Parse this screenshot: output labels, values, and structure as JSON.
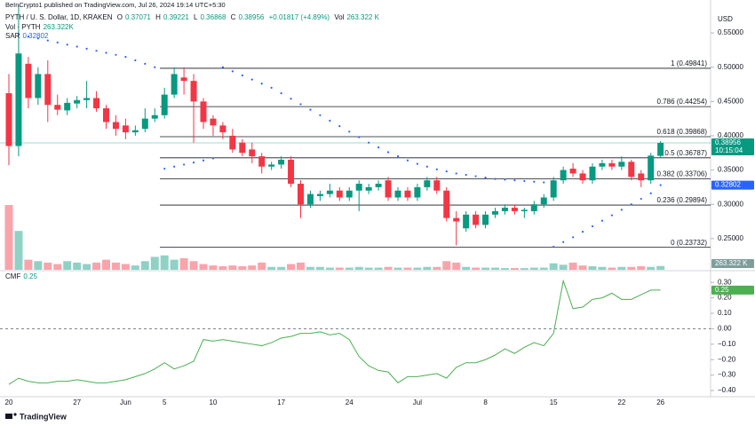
{
  "header": {
    "publisher": "BeInCrypto1 published on TradingView.com, Jul 26, 2024 19:14 UTC+5:30",
    "brand": "TradingView"
  },
  "chart_data": [
    {
      "type": "candlestick",
      "title": "PYTH / U. S. Dollar, 1D, KRAKEN",
      "ohlc_labels": [
        "O",
        "H",
        "L",
        "C"
      ],
      "change_label": "+0.01817 (+4.89%)",
      "countdown": "10:15:04",
      "y_unit": "USD",
      "up_color": "#089981",
      "down_color": "#f23645",
      "categories": [
        "20",
        null,
        null,
        null,
        null,
        null,
        null,
        "27",
        null,
        null,
        null,
        null,
        "Jun",
        null,
        null,
        null,
        "5",
        null,
        null,
        null,
        null,
        "10",
        null,
        null,
        null,
        null,
        null,
        null,
        "17",
        null,
        null,
        null,
        null,
        null,
        null,
        "24",
        null,
        null,
        null,
        null,
        null,
        null,
        "Jul",
        null,
        null,
        null,
        null,
        null,
        null,
        "8",
        null,
        null,
        null,
        null,
        null,
        null,
        "15",
        null,
        null,
        null,
        null,
        null,
        null,
        "22",
        null,
        null,
        null,
        "26"
      ],
      "open": [
        0.462,
        0.385,
        0.505,
        0.455,
        0.49,
        0.445,
        0.437,
        0.447,
        0.452,
        0.455,
        0.44,
        0.42,
        0.415,
        0.405,
        0.41,
        0.425,
        0.43,
        0.46,
        0.485,
        0.48,
        0.45,
        0.425,
        0.415,
        0.4,
        0.39,
        0.38,
        0.37,
        0.355,
        0.358,
        0.365,
        0.33,
        0.3,
        0.312,
        0.315,
        0.32,
        0.31,
        0.32,
        0.32,
        0.325,
        0.335,
        0.31,
        0.32,
        0.31,
        0.325,
        0.335,
        0.32,
        0.28,
        0.265,
        0.285,
        0.27,
        0.285,
        0.29,
        0.295,
        0.29,
        0.29,
        0.3,
        0.31,
        0.335,
        0.352,
        0.345,
        0.335,
        0.355,
        0.36,
        0.355,
        0.362,
        0.345,
        0.335,
        0.37071
      ],
      "high": [
        0.49,
        0.59,
        0.515,
        0.5,
        0.51,
        0.46,
        0.455,
        0.458,
        0.48,
        0.465,
        0.445,
        0.43,
        0.425,
        0.415,
        0.44,
        0.44,
        0.47,
        0.5,
        0.5,
        0.49,
        0.455,
        0.43,
        0.42,
        0.41,
        0.395,
        0.39,
        0.375,
        0.362,
        0.37,
        0.37,
        0.335,
        0.32,
        0.32,
        0.33,
        0.325,
        0.325,
        0.335,
        0.33,
        0.335,
        0.34,
        0.325,
        0.325,
        0.33,
        0.34,
        0.34,
        0.325,
        0.29,
        0.29,
        0.29,
        0.29,
        0.295,
        0.3,
        0.3,
        0.295,
        0.305,
        0.315,
        0.34,
        0.355,
        0.36,
        0.35,
        0.36,
        0.365,
        0.365,
        0.37,
        0.365,
        0.35,
        0.375,
        0.39221
      ],
      "low": [
        0.357,
        0.37,
        0.44,
        0.445,
        0.42,
        0.43,
        0.43,
        0.44,
        0.44,
        0.435,
        0.41,
        0.4,
        0.395,
        0.4,
        0.405,
        0.42,
        0.425,
        0.455,
        0.46,
        0.39,
        0.41,
        0.4,
        0.395,
        0.375,
        0.37,
        0.36,
        0.345,
        0.35,
        0.352,
        0.325,
        0.28,
        0.295,
        0.305,
        0.31,
        0.305,
        0.305,
        0.29,
        0.315,
        0.32,
        0.305,
        0.305,
        0.305,
        0.305,
        0.32,
        0.315,
        0.275,
        0.24,
        0.26,
        0.265,
        0.265,
        0.28,
        0.285,
        0.285,
        0.28,
        0.285,
        0.295,
        0.305,
        0.33,
        0.34,
        0.33,
        0.33,
        0.35,
        0.35,
        0.35,
        0.335,
        0.325,
        0.33,
        0.36868
      ],
      "close": [
        0.385,
        0.52,
        0.455,
        0.49,
        0.445,
        0.438,
        0.448,
        0.452,
        0.455,
        0.44,
        0.42,
        0.41,
        0.405,
        0.408,
        0.425,
        0.43,
        0.46,
        0.49,
        0.48,
        0.45,
        0.42,
        0.415,
        0.405,
        0.38,
        0.375,
        0.37,
        0.355,
        0.358,
        0.365,
        0.33,
        0.3,
        0.315,
        0.315,
        0.32,
        0.31,
        0.32,
        0.33,
        0.325,
        0.33,
        0.31,
        0.32,
        0.31,
        0.325,
        0.335,
        0.32,
        0.28,
        0.275,
        0.285,
        0.27,
        0.285,
        0.29,
        0.295,
        0.29,
        0.292,
        0.3,
        0.31,
        0.335,
        0.35,
        0.345,
        0.335,
        0.355,
        0.36,
        0.355,
        0.362,
        0.34,
        0.335,
        0.371,
        0.38956
      ],
      "ylim": [
        0.2045,
        0.598
      ],
      "yticks": [
        {
          "value": 0.55,
          "label": "0.55000"
        },
        {
          "value": 0.5,
          "label": "0.50000"
        },
        {
          "value": 0.45,
          "label": "0.45000"
        },
        {
          "value": 0.4,
          "label": "0.40000"
        },
        {
          "value": 0.35,
          "label": "0.35000"
        },
        {
          "value": 0.3,
          "label": "0.30000"
        },
        {
          "value": 0.25,
          "label": "0.25000"
        }
      ],
      "volume": {
        "name": "Vol · PYTH",
        "header_name": "Vol",
        "legend_label": "263.322K",
        "badge_label": "263.322 K",
        "values": [
          4500,
          2700,
          700,
          600,
          500,
          400,
          600,
          500,
          400,
          500,
          700,
          500,
          400,
          300,
          600,
          900,
          1000,
          700,
          800,
          600,
          400,
          300,
          250,
          300,
          250,
          300,
          500,
          200,
          200,
          400,
          500,
          200,
          200,
          150,
          150,
          150,
          200,
          150,
          150,
          200,
          150,
          150,
          150,
          200,
          200,
          600,
          500,
          200,
          150,
          150,
          150,
          120,
          120,
          120,
          150,
          150,
          450,
          350,
          500,
          300,
          250,
          200,
          150,
          200,
          200,
          250,
          200,
          263.322
        ]
      },
      "sar": {
        "name": "SAR",
        "color": "#2962ff",
        "values": [
          null,
          0.548,
          0.545,
          0.542,
          0.539,
          0.536,
          0.533,
          0.53,
          0.527,
          0.524,
          0.521,
          0.518,
          0.515,
          0.51,
          0.505,
          0.5,
          0.352,
          0.355,
          0.358,
          0.361,
          0.364,
          0.367,
          0.5,
          0.494,
          0.488,
          0.482,
          0.476,
          0.47,
          0.462,
          0.454,
          0.446,
          0.438,
          0.43,
          0.422,
          0.414,
          0.406,
          0.398,
          0.39,
          0.383,
          0.376,
          0.37,
          0.364,
          0.359,
          0.355,
          0.351,
          0.348,
          0.345,
          0.343,
          0.341,
          0.339,
          0.337,
          0.336,
          0.335,
          0.334,
          0.333,
          0.332,
          0.238,
          0.245,
          0.252,
          0.26,
          0.268,
          0.276,
          0.284,
          0.292,
          0.3,
          0.308,
          0.316,
          0.32802
        ]
      },
      "fibonacci": {
        "color": "#131722",
        "levels": [
          {
            "value": 0.49841,
            "label": "1 (0.49841)"
          },
          {
            "value": 0.44254,
            "label": "0.786 (0.44254)"
          },
          {
            "value": 0.39868,
            "label": "0.618 (0.39868)"
          },
          {
            "value": 0.36787,
            "label": "0.5 (0.36787)"
          },
          {
            "value": 0.33706,
            "label": "0.382 (0.33706)"
          },
          {
            "value": 0.29894,
            "label": "0.236 (0.29894)"
          },
          {
            "value": 0.23732,
            "label": "0 (0.23732)"
          }
        ]
      }
    },
    {
      "type": "line",
      "series": [
        {
          "name": "CMF",
          "color": "#4caf50",
          "values": [
            -0.36,
            -0.32,
            -0.34,
            -0.35,
            -0.35,
            -0.34,
            -0.34,
            -0.33,
            -0.34,
            -0.35,
            -0.35,
            -0.34,
            -0.33,
            -0.31,
            -0.29,
            -0.26,
            -0.22,
            -0.26,
            -0.24,
            -0.21,
            -0.07,
            -0.08,
            -0.07,
            -0.08,
            -0.09,
            -0.1,
            -0.11,
            -0.09,
            -0.06,
            -0.05,
            -0.03,
            -0.03,
            -0.02,
            -0.04,
            -0.03,
            -0.07,
            -0.18,
            -0.24,
            -0.27,
            -0.28,
            -0.35,
            -0.31,
            -0.31,
            -0.3,
            -0.29,
            -0.32,
            -0.25,
            -0.22,
            -0.22,
            -0.2,
            -0.17,
            -0.13,
            -0.16,
            -0.12,
            -0.09,
            -0.11,
            -0.03,
            0.31,
            0.13,
            0.14,
            0.19,
            0.2,
            0.23,
            0.19,
            0.19,
            0.22,
            0.25,
            0.25
          ]
        }
      ],
      "ylim": [
        -0.44,
        0.37
      ],
      "zero_line": true,
      "yticks": [
        {
          "value": 0.3,
          "label": "0.30"
        },
        {
          "value": 0.2,
          "label": "0.20"
        },
        {
          "value": 0.1,
          "label": "0.10"
        },
        {
          "value": 0,
          "label": "0.00"
        },
        {
          "value": -0.1,
          "label": "−0.10"
        },
        {
          "value": -0.2,
          "label": "−0.20"
        },
        {
          "value": -0.3,
          "label": "−0.30"
        },
        {
          "value": -0.4,
          "label": "−0.40"
        }
      ]
    }
  ]
}
